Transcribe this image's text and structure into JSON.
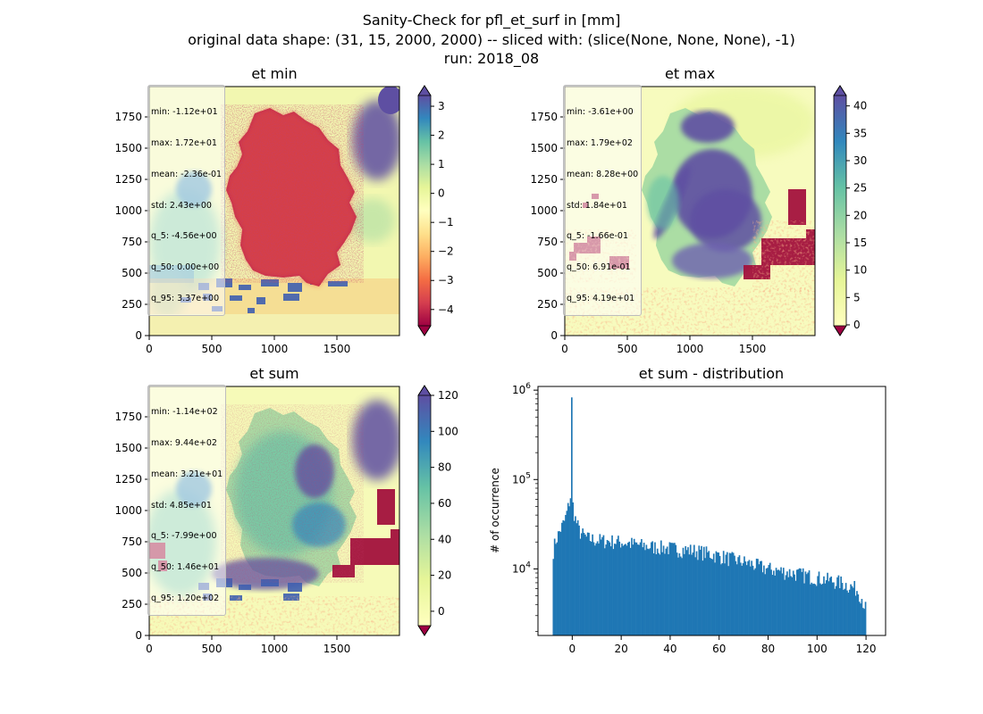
{
  "suptitle": [
    "Sanity-Check for pfl_et_surf in [mm]",
    "original data shape: (31, 15, 2000, 2000) -- sliced with: (slice(None, None, None), -1)",
    "run: 2018_08"
  ],
  "chart_data": [
    {
      "type": "heatmap",
      "title": "et min",
      "colormap": "Spectral",
      "xlim": [
        0,
        2000
      ],
      "ylim": [
        0,
        2000
      ],
      "xticks": [
        "0",
        "500",
        "1000",
        "1500"
      ],
      "yticks": [
        "0",
        "250",
        "500",
        "750",
        "1000",
        "1250",
        "1500",
        "1750"
      ],
      "colorbar": {
        "ticks": [
          -4,
          -3,
          -2,
          -1,
          0,
          1,
          2,
          3
        ],
        "tick_labels": [
          "−4",
          "−3",
          "−2",
          "−1",
          "0",
          "1",
          "2",
          "3"
        ],
        "range": [
          -4.56,
          3.37
        ],
        "extend": "both"
      },
      "stats": [
        "min: -1.12e+01",
        "max: 1.72e+01",
        "mean: -2.36e-01",
        "std: 2.43e+00",
        "q_5: -4.56e+00",
        "q_50: 0.00e+00",
        "q_95: 3.37e+00"
      ]
    },
    {
      "type": "heatmap",
      "title": "et max",
      "colormap": "Spectral",
      "xlim": [
        0,
        2000
      ],
      "ylim": [
        0,
        2000
      ],
      "xticks": [
        "0",
        "500",
        "1000",
        "1500"
      ],
      "yticks": [
        "0",
        "250",
        "500",
        "750",
        "1000",
        "1250",
        "1500",
        "1750"
      ],
      "colorbar": {
        "ticks": [
          0,
          5,
          10,
          15,
          20,
          25,
          30,
          35,
          40
        ],
        "tick_labels": [
          "0",
          "5",
          "10",
          "15",
          "20",
          "25",
          "30",
          "35",
          "40"
        ],
        "range": [
          -0.166,
          41.9
        ],
        "extend": "both"
      },
      "stats": [
        "min: -3.61e+00",
        "max: 1.79e+02",
        "mean: 8.28e+00",
        "std: 1.84e+01",
        "q_5: -1.66e-01",
        "q_50: 6.91e-01",
        "q_95: 4.19e+01"
      ]
    },
    {
      "type": "heatmap",
      "title": "et sum",
      "colormap": "Spectral",
      "xlim": [
        0,
        2000
      ],
      "ylim": [
        0,
        2000
      ],
      "xticks": [
        "0",
        "500",
        "1000",
        "1500"
      ],
      "yticks": [
        "0",
        "250",
        "500",
        "750",
        "1000",
        "1250",
        "1500",
        "1750"
      ],
      "colorbar": {
        "ticks": [
          0,
          20,
          40,
          60,
          80,
          100,
          120
        ],
        "tick_labels": [
          "0",
          "20",
          "40",
          "60",
          "80",
          "100",
          "120"
        ],
        "range": [
          -7.99,
          120
        ],
        "extend": "both"
      },
      "stats": [
        "min: -1.14e+02",
        "max: 9.44e+02",
        "mean: 3.21e+01",
        "std: 4.85e+01",
        "q_5: -7.99e+00",
        "q_50: 1.46e+01",
        "q_95: 1.20e+02"
      ]
    },
    {
      "type": "bar",
      "title": "et sum - distribution",
      "ylabel": "# of occurrence",
      "yscale": "log",
      "xlim": [
        -14,
        128
      ],
      "ylim": [
        1800,
        1100000
      ],
      "xticks": [
        0,
        20,
        40,
        60,
        80,
        100,
        120
      ],
      "xtick_labels": [
        "0",
        "20",
        "40",
        "60",
        "80",
        "100",
        "120"
      ],
      "yticks": [
        10000,
        100000,
        1000000
      ],
      "ytick_labels": [
        "10^4",
        "10^5",
        "10^6"
      ],
      "color": "#1f77b4",
      "bin_range": [
        -7.99,
        120
      ],
      "bin_count": 256,
      "peak": {
        "x": 0,
        "count": 830000
      },
      "profile_knots": {
        "x": [
          -8,
          -7,
          -5,
          -3,
          -2,
          -1,
          -0.5,
          1,
          3,
          6,
          10,
          20,
          30,
          40,
          50,
          60,
          70,
          80,
          90,
          100,
          110,
          116,
          118,
          120
        ],
        "count": [
          15000,
          20000,
          27000,
          35000,
          45000,
          60000,
          70000,
          38000,
          26000,
          22000,
          21000,
          20000,
          18000,
          17000,
          16000,
          14000,
          12000,
          10000,
          9000,
          8000,
          7000,
          6000,
          5000,
          3500
        ]
      }
    }
  ],
  "colors": {
    "spectral_stops": [
      "#9e0142",
      "#d53e4f",
      "#f46d43",
      "#fdae61",
      "#fee08b",
      "#ffffbf",
      "#e6f598",
      "#abdda4",
      "#66c2a5",
      "#3288bd",
      "#5e4fa2"
    ],
    "hist_blue": "#1f77b4"
  }
}
